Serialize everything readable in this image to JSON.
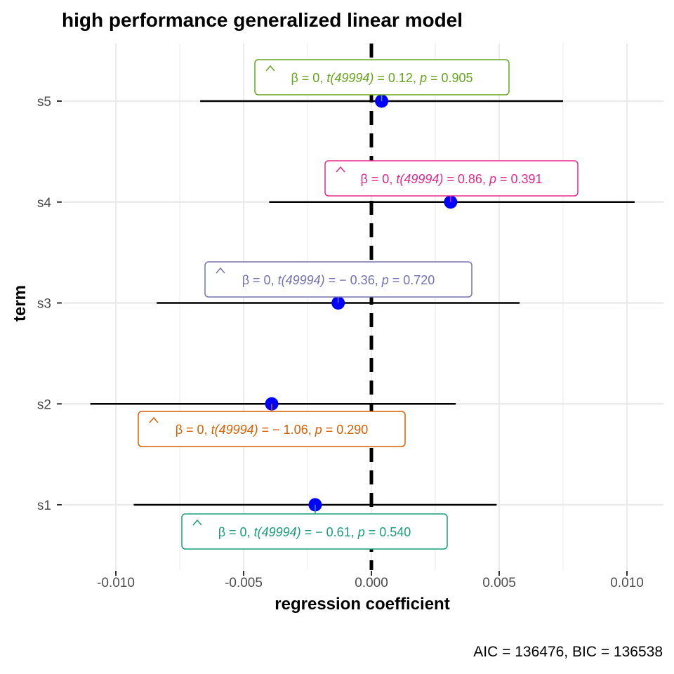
{
  "chart_data": {
    "type": "scatter",
    "title": "high performance generalized linear model",
    "xlabel": "regression coefficient",
    "ylabel": "term",
    "caption": "AIC = 136476, BIC = 136538",
    "xlim": [
      -0.011,
      0.0113
    ],
    "x_ticks": [
      -0.01,
      -0.005,
      0.0,
      0.005,
      0.01
    ],
    "x_tick_labels": [
      "-0.010",
      "-0.005",
      "0.000",
      "0.005",
      "0.010"
    ],
    "reference_line_x": 0,
    "grid": true,
    "point_color": "#0000ff",
    "terms": [
      {
        "term": "s1",
        "estimate": -0.0022,
        "conf_low": -0.0093,
        "conf_high": 0.0049,
        "color": "#1b9e77",
        "label": {
          "beta": "β = 0,",
          "t_df": "t(49994)",
          "t_value": " = − 0.61,",
          "p_sym": "p",
          "p_value": " = 0.540"
        }
      },
      {
        "term": "s2",
        "estimate": -0.0039,
        "conf_low": -0.011,
        "conf_high": 0.0033,
        "color": "#d95f02",
        "label": {
          "beta": "β = 0,",
          "t_df": "t(49994)",
          "t_value": " = − 1.06,",
          "p_sym": "p",
          "p_value": " = 0.290"
        }
      },
      {
        "term": "s3",
        "estimate": -0.0013,
        "conf_low": -0.0084,
        "conf_high": 0.0058,
        "color": "#7570b3",
        "label": {
          "beta": "β = 0,",
          "t_df": "t(49994)",
          "t_value": " = − 0.36,",
          "p_sym": "p",
          "p_value": " = 0.720"
        }
      },
      {
        "term": "s4",
        "estimate": 0.0031,
        "conf_low": -0.004,
        "conf_high": 0.0103,
        "color": "#e7298a",
        "label": {
          "beta": "β = 0,",
          "t_df": "t(49994)",
          "t_value": " = 0.86,",
          "p_sym": "p",
          "p_value": " = 0.391"
        }
      },
      {
        "term": "s5",
        "estimate": 0.0004,
        "conf_low": -0.0067,
        "conf_high": 0.0075,
        "color": "#66a61e",
        "label": {
          "beta": "β = 0,",
          "t_df": "t(49994)",
          "t_value": " = 0.12,",
          "p_sym": "p",
          "p_value": " = 0.905"
        }
      }
    ]
  }
}
